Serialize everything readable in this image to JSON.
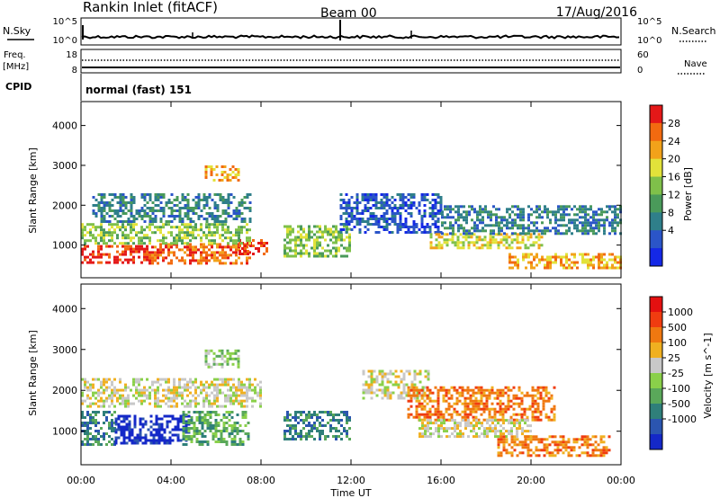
{
  "header": {
    "station": "Rankin Inlet (fitACF)",
    "beam": "Beam 00",
    "date": "17/Aug/2016"
  },
  "top_panel": {
    "nsky_label": "N.Sky",
    "nsky_ticks": [
      "10^5",
      "10^0"
    ],
    "nsearch_label": "N.Search",
    "nsearch_ticks": [
      "10^5",
      "10^0"
    ],
    "freq_label": "Freq.",
    "freq_unit": "[MHz]",
    "freq_ticks": [
      "18",
      "8"
    ],
    "nave_label": "Nave",
    "nave_ticks": [
      "60",
      "0"
    ],
    "cpid_label": "CPID",
    "cpid_value": "normal (fast) 151"
  },
  "chart_data": [
    {
      "type": "heatmap",
      "name": "power",
      "ylabel": "Slant Range [km]",
      "yticks": [
        1000,
        2000,
        3000,
        4000
      ],
      "ylim": [
        180,
        4600
      ],
      "xlim": [
        0,
        24
      ],
      "colorbar": {
        "label": "Power [dB]",
        "ticks": [
          "28",
          "24",
          "20",
          "16",
          "12",
          "8",
          "4"
        ],
        "colors": [
          "#1428e6",
          "#2b55c8",
          "#2f7f8a",
          "#4a9a5a",
          "#7fc04a",
          "#e2e23a",
          "#f2a21a",
          "#f26a10",
          "#e41818"
        ]
      },
      "regions": [
        {
          "t": [
            0.0,
            3.0
          ],
          "r": [
            550,
            1000
          ],
          "level": 8
        },
        {
          "t": [
            3.0,
            7.5
          ],
          "r": [
            550,
            1050
          ],
          "level": 7
        },
        {
          "t": [
            7.0,
            8.3
          ],
          "r": [
            750,
            1150
          ],
          "level": 8
        },
        {
          "t": [
            0.0,
            7.5
          ],
          "r": [
            1050,
            1550
          ],
          "level": 4
        },
        {
          "t": [
            0.5,
            7.5
          ],
          "r": [
            1600,
            2300
          ],
          "level": 2
        },
        {
          "t": [
            9.0,
            12.0
          ],
          "r": [
            700,
            1500
          ],
          "level": 4
        },
        {
          "t": [
            11.5,
            16.0
          ],
          "r": [
            1300,
            2300
          ],
          "level": 1
        },
        {
          "t": [
            15.5,
            20.5
          ],
          "r": [
            900,
            1300
          ],
          "level": 5
        },
        {
          "t": [
            16.0,
            24.0
          ],
          "r": [
            1300,
            2000
          ],
          "level": 2
        },
        {
          "t": [
            19.0,
            24.0
          ],
          "r": [
            400,
            800
          ],
          "level": 6
        },
        {
          "t": [
            5.5,
            7.0
          ],
          "r": [
            2600,
            3000
          ],
          "level": 6
        }
      ]
    },
    {
      "type": "heatmap",
      "name": "velocity",
      "ylabel": "Slant Range [km]",
      "yticks": [
        1000,
        2000,
        3000,
        4000
      ],
      "ylim": [
        180,
        4600
      ],
      "xlim": [
        0,
        24
      ],
      "xticks": [
        "00:00",
        "04:00",
        "08:00",
        "12:00",
        "16:00",
        "20:00",
        "00:00"
      ],
      "xlabel": "Time UT",
      "colorbar": {
        "label": "Velocity [m s^-1]",
        "ticks": [
          "1000",
          "500",
          "100",
          "25",
          "-25",
          "-100",
          "-500",
          "-1000"
        ],
        "colors": [
          "#1428c8",
          "#2b55b0",
          "#2f7f7a",
          "#5aa85a",
          "#8ad04a",
          "#c8c8c8",
          "#f0b020",
          "#f07810",
          "#f03c10",
          "#e41010"
        ]
      },
      "regions": [
        {
          "t": [
            0.0,
            1.5
          ],
          "r": [
            700,
            1500
          ],
          "level": 2
        },
        {
          "t": [
            1.5,
            4.8
          ],
          "r": [
            700,
            1400
          ],
          "level": 0
        },
        {
          "t": [
            4.5,
            7.5
          ],
          "r": [
            700,
            1500
          ],
          "level": 3
        },
        {
          "t": [
            0.0,
            8.0
          ],
          "r": [
            1600,
            2300
          ],
          "level": 5
        },
        {
          "t": [
            9.0,
            12.0
          ],
          "r": [
            800,
            1500
          ],
          "level": 2
        },
        {
          "t": [
            12.5,
            15.5
          ],
          "r": [
            1800,
            2500
          ],
          "level": 5
        },
        {
          "t": [
            14.5,
            21.0
          ],
          "r": [
            1300,
            2100
          ],
          "level": 7
        },
        {
          "t": [
            15.0,
            20.0
          ],
          "r": [
            900,
            1300
          ],
          "level": 5
        },
        {
          "t": [
            18.5,
            23.5
          ],
          "r": [
            400,
            900
          ],
          "level": 7
        },
        {
          "t": [
            5.5,
            7.0
          ],
          "r": [
            2600,
            3000
          ],
          "level": 4
        }
      ]
    }
  ]
}
